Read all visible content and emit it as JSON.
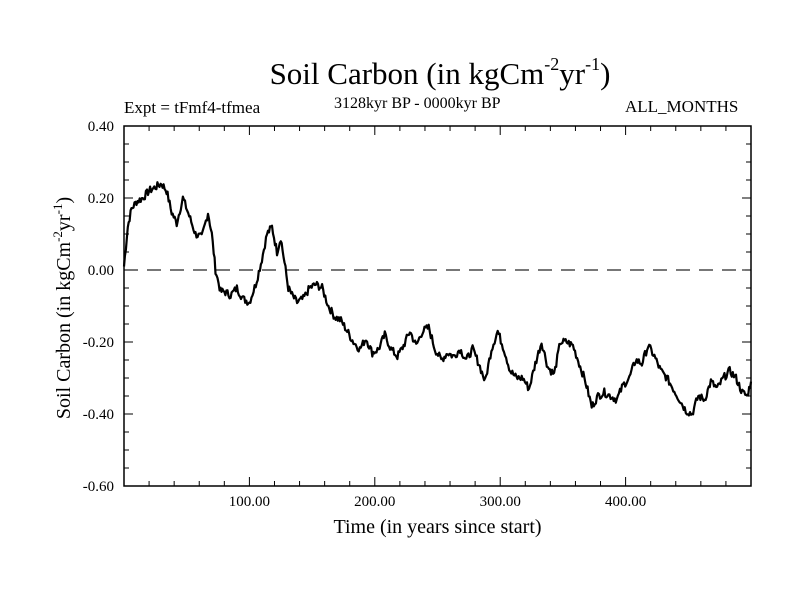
{
  "title": {
    "main": "Soil Carbon (in kgCm",
    "sup1": "-2",
    "mid": "yr",
    "sup2": "-1",
    "end": ")"
  },
  "subtitle": {
    "left": "Expt = tFmf4-tfmea",
    "center": "3128kyr BP - 0000kyr BP",
    "right": "ALL_MONTHS"
  },
  "chart_data": {
    "type": "line",
    "title": "Soil Carbon (in kgCm-2yr-1)",
    "xlabel": "Time (in years since start)",
    "ylabel": "Soil Carbon (in kgCm-2yr-1)",
    "xlim": [
      0,
      500
    ],
    "ylim": [
      -0.6,
      0.4
    ],
    "x_ticks": [
      100,
      200,
      300,
      400
    ],
    "x_tick_labels": [
      "100.00",
      "200.00",
      "300.00",
      "400.00"
    ],
    "y_ticks": [
      -0.6,
      -0.4,
      -0.2,
      0.0,
      0.2,
      0.4
    ],
    "y_tick_labels": [
      "-0.60",
      "-0.40",
      "-0.20",
      "0.00",
      "0.20",
      "0.40"
    ],
    "reference_line": {
      "y": 0.0,
      "style": "dashed"
    },
    "series": [
      {
        "name": "Soil Carbon",
        "x": [
          0,
          3,
          6,
          10,
          15,
          20,
          25,
          30,
          34,
          38,
          42,
          47,
          52,
          57,
          62,
          67,
          70,
          73,
          77,
          80,
          85,
          90,
          95,
          100,
          105,
          110,
          114,
          118,
          122,
          125,
          128,
          131,
          134,
          138,
          143,
          148,
          153,
          158,
          163,
          168,
          173,
          178,
          183,
          188,
          193,
          198,
          203,
          208,
          213,
          218,
          223,
          228,
          233,
          238,
          243,
          248,
          253,
          258,
          263,
          268,
          273,
          278,
          283,
          288,
          293,
          298,
          303,
          308,
          313,
          318,
          323,
          328,
          333,
          338,
          343,
          348,
          353,
          358,
          363,
          368,
          373,
          378,
          383,
          388,
          393,
          398,
          403,
          408,
          413,
          418,
          423,
          428,
          433,
          438,
          443,
          448,
          453,
          458,
          463,
          468,
          473,
          478,
          483,
          488,
          493,
          497,
          500
        ],
        "y": [
          0.01,
          0.12,
          0.17,
          0.19,
          0.2,
          0.22,
          0.23,
          0.24,
          0.22,
          0.16,
          0.13,
          0.2,
          0.15,
          0.1,
          0.09,
          0.16,
          0.1,
          0.0,
          -0.06,
          -0.06,
          -0.07,
          -0.05,
          -0.08,
          -0.09,
          -0.04,
          0.03,
          0.1,
          0.12,
          0.05,
          0.09,
          0.02,
          -0.05,
          -0.07,
          -0.09,
          -0.08,
          -0.05,
          -0.04,
          -0.05,
          -0.1,
          -0.13,
          -0.14,
          -0.17,
          -0.2,
          -0.22,
          -0.19,
          -0.23,
          -0.22,
          -0.18,
          -0.22,
          -0.24,
          -0.21,
          -0.17,
          -0.21,
          -0.17,
          -0.16,
          -0.22,
          -0.25,
          -0.23,
          -0.24,
          -0.22,
          -0.25,
          -0.22,
          -0.26,
          -0.31,
          -0.22,
          -0.17,
          -0.22,
          -0.28,
          -0.3,
          -0.3,
          -0.33,
          -0.26,
          -0.2,
          -0.27,
          -0.29,
          -0.2,
          -0.2,
          -0.21,
          -0.26,
          -0.31,
          -0.38,
          -0.35,
          -0.34,
          -0.35,
          -0.36,
          -0.32,
          -0.3,
          -0.25,
          -0.26,
          -0.21,
          -0.24,
          -0.28,
          -0.3,
          -0.33,
          -0.36,
          -0.39,
          -0.4,
          -0.35,
          -0.36,
          -0.31,
          -0.33,
          -0.3,
          -0.28,
          -0.3,
          -0.34,
          -0.35,
          -0.31
        ]
      }
    ]
  }
}
